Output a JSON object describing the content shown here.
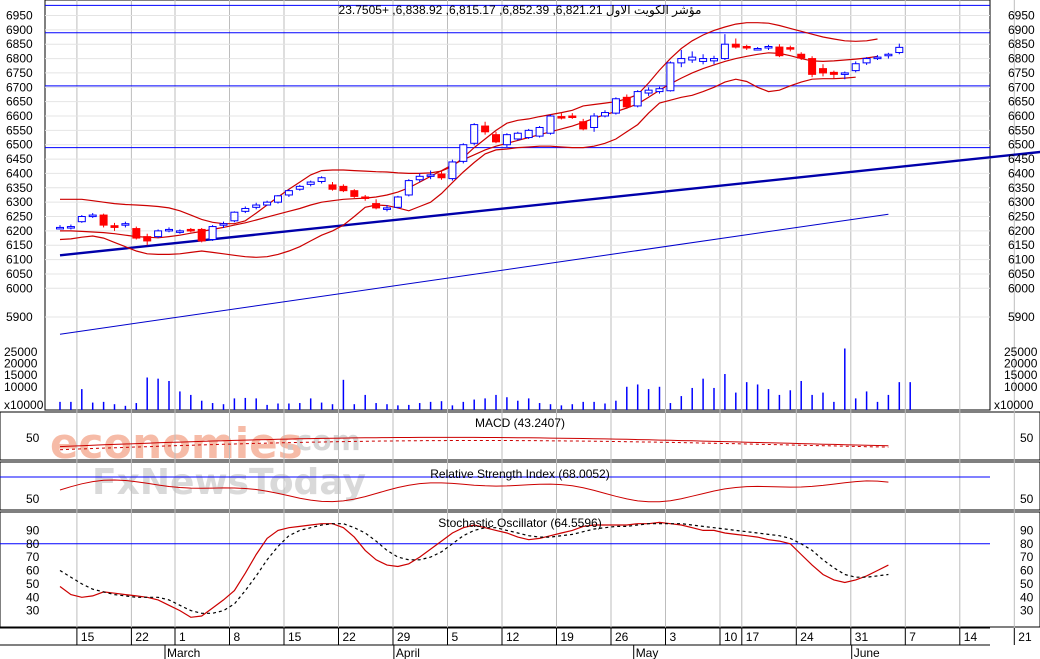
{
  "colors": {
    "up_candle": "#0000ff",
    "down_candle": "#ff0000",
    "bands": "#cc0000",
    "trendline": "#0000aa",
    "hline": "#0000ff",
    "grid": "#bdbdbd",
    "ma": "#0000cc",
    "volume": "#0000ff",
    "watermark": "#f4a58a",
    "watermark2": "#c9c9c9"
  },
  "watermark": {
    "line1": "economies",
    "line1_suffix": ".com",
    "line2": "FxNewsToday"
  },
  "chart_data": [
    {
      "type": "candlestick",
      "title": "مؤشر الكويت الاول 6,821.21, 6,852.39, 6,815.17, 6,838.92, +23.7505",
      "ylim": [
        5820,
        6990
      ],
      "yticks": [
        5900,
        6000,
        6050,
        6100,
        6150,
        6200,
        6250,
        6300,
        6350,
        6400,
        6450,
        6500,
        6550,
        6600,
        6650,
        6700,
        6750,
        6800,
        6850,
        6900,
        6950
      ],
      "hlines": [
        6985,
        6890,
        6705,
        6490
      ],
      "x_day_labels": [
        {
          "i": 1,
          "label": "15"
        },
        {
          "i": 6,
          "label": "22"
        },
        {
          "i": 10,
          "label": "1"
        },
        {
          "i": 15,
          "label": "8"
        },
        {
          "i": 20,
          "label": "15"
        },
        {
          "i": 25,
          "label": "22"
        },
        {
          "i": 30,
          "label": "29"
        },
        {
          "i": 35,
          "label": "5"
        },
        {
          "i": 40,
          "label": "12"
        },
        {
          "i": 45,
          "label": "19"
        },
        {
          "i": 50,
          "label": "26"
        },
        {
          "i": 55,
          "label": "3"
        },
        {
          "i": 60,
          "label": "10"
        },
        {
          "i": 62,
          "label": "17"
        },
        {
          "i": 67,
          "label": "24"
        },
        {
          "i": 72,
          "label": "31"
        },
        {
          "i": 77,
          "label": "7"
        },
        {
          "i": 82,
          "label": "14"
        },
        {
          "i": 87,
          "label": "21"
        }
      ],
      "x_month_labels": [
        {
          "i": 10,
          "label": "March"
        },
        {
          "i": 31,
          "label": "April"
        },
        {
          "i": 53,
          "label": "May"
        },
        {
          "i": 73,
          "label": "June"
        }
      ],
      "candles": [
        {
          "o": 6212,
          "h": 6220,
          "l": 6205,
          "c": 6212
        },
        {
          "o": 6212,
          "h": 6222,
          "l": 6205,
          "c": 6215
        },
        {
          "o": 6232,
          "h": 6255,
          "l": 6228,
          "c": 6250
        },
        {
          "o": 6255,
          "h": 6262,
          "l": 6245,
          "c": 6255
        },
        {
          "o": 6255,
          "h": 6260,
          "l": 6212,
          "c": 6220
        },
        {
          "o": 6218,
          "h": 6228,
          "l": 6200,
          "c": 6212
        },
        {
          "o": 6222,
          "h": 6232,
          "l": 6212,
          "c": 6225
        },
        {
          "o": 6208,
          "h": 6215,
          "l": 6170,
          "c": 6175
        },
        {
          "o": 6180,
          "h": 6190,
          "l": 6150,
          "c": 6165
        },
        {
          "o": 6180,
          "h": 6205,
          "l": 6175,
          "c": 6200
        },
        {
          "o": 6202,
          "h": 6212,
          "l": 6195,
          "c": 6205
        },
        {
          "o": 6200,
          "h": 6205,
          "l": 6190,
          "c": 6200
        },
        {
          "o": 6205,
          "h": 6210,
          "l": 6195,
          "c": 6200
        },
        {
          "o": 6205,
          "h": 6210,
          "l": 6160,
          "c": 6165
        },
        {
          "o": 6170,
          "h": 6220,
          "l": 6165,
          "c": 6215
        },
        {
          "o": 6220,
          "h": 6232,
          "l": 6210,
          "c": 6225
        },
        {
          "o": 6235,
          "h": 6268,
          "l": 6230,
          "c": 6265
        },
        {
          "o": 6268,
          "h": 6285,
          "l": 6262,
          "c": 6278
        },
        {
          "o": 6282,
          "h": 6298,
          "l": 6275,
          "c": 6290
        },
        {
          "o": 6290,
          "h": 6305,
          "l": 6288,
          "c": 6300
        },
        {
          "o": 6300,
          "h": 6325,
          "l": 6295,
          "c": 6322
        },
        {
          "o": 6325,
          "h": 6345,
          "l": 6318,
          "c": 6340
        },
        {
          "o": 6345,
          "h": 6360,
          "l": 6340,
          "c": 6355
        },
        {
          "o": 6362,
          "h": 6375,
          "l": 6355,
          "c": 6370
        },
        {
          "o": 6372,
          "h": 6390,
          "l": 6365,
          "c": 6385
        },
        {
          "o": 6360,
          "h": 6370,
          "l": 6340,
          "c": 6345
        },
        {
          "o": 6355,
          "h": 6362,
          "l": 6335,
          "c": 6340
        },
        {
          "o": 6340,
          "h": 6345,
          "l": 6315,
          "c": 6320
        },
        {
          "o": 6318,
          "h": 6325,
          "l": 6305,
          "c": 6315
        },
        {
          "o": 6295,
          "h": 6310,
          "l": 6275,
          "c": 6280
        },
        {
          "o": 6275,
          "h": 6290,
          "l": 6268,
          "c": 6280
        },
        {
          "o": 6282,
          "h": 6322,
          "l": 6278,
          "c": 6318
        },
        {
          "o": 6325,
          "h": 6380,
          "l": 6320,
          "c": 6375
        },
        {
          "o": 6378,
          "h": 6400,
          "l": 6370,
          "c": 6390
        },
        {
          "o": 6392,
          "h": 6410,
          "l": 6380,
          "c": 6395
        },
        {
          "o": 6398,
          "h": 6410,
          "l": 6378,
          "c": 6385
        },
        {
          "o": 6382,
          "h": 6448,
          "l": 6375,
          "c": 6440
        },
        {
          "o": 6442,
          "h": 6505,
          "l": 6435,
          "c": 6500
        },
        {
          "o": 6505,
          "h": 6575,
          "l": 6498,
          "c": 6570
        },
        {
          "o": 6565,
          "h": 6580,
          "l": 6535,
          "c": 6545
        },
        {
          "o": 6535,
          "h": 6545,
          "l": 6505,
          "c": 6510
        },
        {
          "o": 6500,
          "h": 6540,
          "l": 6492,
          "c": 6535
        },
        {
          "o": 6520,
          "h": 6545,
          "l": 6515,
          "c": 6540
        },
        {
          "o": 6525,
          "h": 6555,
          "l": 6520,
          "c": 6550
        },
        {
          "o": 6530,
          "h": 6565,
          "l": 6525,
          "c": 6560
        },
        {
          "o": 6540,
          "h": 6605,
          "l": 6535,
          "c": 6600
        },
        {
          "o": 6598,
          "h": 6610,
          "l": 6588,
          "c": 6595
        },
        {
          "o": 6600,
          "h": 6610,
          "l": 6590,
          "c": 6598
        },
        {
          "o": 6580,
          "h": 6590,
          "l": 6550,
          "c": 6555
        },
        {
          "o": 6560,
          "h": 6610,
          "l": 6545,
          "c": 6600
        },
        {
          "o": 6600,
          "h": 6620,
          "l": 6595,
          "c": 6612
        },
        {
          "o": 6610,
          "h": 6665,
          "l": 6605,
          "c": 6660
        },
        {
          "o": 6665,
          "h": 6675,
          "l": 6625,
          "c": 6632
        },
        {
          "o": 6635,
          "h": 6690,
          "l": 6630,
          "c": 6685
        },
        {
          "o": 6680,
          "h": 6700,
          "l": 6670,
          "c": 6690
        },
        {
          "o": 6685,
          "h": 6702,
          "l": 6678,
          "c": 6695
        },
        {
          "o": 6688,
          "h": 6790,
          "l": 6685,
          "c": 6785
        },
        {
          "o": 6785,
          "h": 6830,
          "l": 6770,
          "c": 6800
        },
        {
          "o": 6795,
          "h": 6825,
          "l": 6785,
          "c": 6805
        },
        {
          "o": 6790,
          "h": 6815,
          "l": 6780,
          "c": 6800
        },
        {
          "o": 6792,
          "h": 6810,
          "l": 6780,
          "c": 6800
        },
        {
          "o": 6800,
          "h": 6885,
          "l": 6795,
          "c": 6850
        },
        {
          "o": 6850,
          "h": 6870,
          "l": 6835,
          "c": 6840
        },
        {
          "o": 6842,
          "h": 6848,
          "l": 6830,
          "c": 6838
        },
        {
          "o": 6835,
          "h": 6840,
          "l": 6828,
          "c": 6835
        },
        {
          "o": 6838,
          "h": 6848,
          "l": 6830,
          "c": 6842
        },
        {
          "o": 6840,
          "h": 6850,
          "l": 6805,
          "c": 6810
        },
        {
          "o": 6838,
          "h": 6845,
          "l": 6825,
          "c": 6835
        },
        {
          "o": 6815,
          "h": 6822,
          "l": 6795,
          "c": 6802
        },
        {
          "o": 6800,
          "h": 6808,
          "l": 6735,
          "c": 6745
        },
        {
          "o": 6765,
          "h": 6780,
          "l": 6738,
          "c": 6750
        },
        {
          "o": 6752,
          "h": 6758,
          "l": 6730,
          "c": 6745
        },
        {
          "o": 6745,
          "h": 6755,
          "l": 6728,
          "c": 6750
        },
        {
          "o": 6758,
          "h": 6790,
          "l": 6752,
          "c": 6782
        },
        {
          "o": 6785,
          "h": 6805,
          "l": 6778,
          "c": 6800
        },
        {
          "o": 6802,
          "h": 6812,
          "l": 6795,
          "c": 6805
        },
        {
          "o": 6810,
          "h": 6820,
          "l": 6800,
          "c": 6815
        },
        {
          "o": 6821,
          "h": 6852,
          "l": 6815,
          "c": 6839
        }
      ],
      "bollinger_upper": [
        6310,
        6310,
        6310,
        6305,
        6300,
        6295,
        6292,
        6290,
        6288,
        6285,
        6280,
        6270,
        6255,
        6240,
        6230,
        6225,
        6225,
        6235,
        6262,
        6290,
        6318,
        6345,
        6370,
        6395,
        6410,
        6412,
        6412,
        6410,
        6408,
        6406,
        6405,
        6402,
        6400,
        6400,
        6402,
        6408,
        6425,
        6455,
        6490,
        6520,
        6550,
        6575,
        6585,
        6590,
        6598,
        6605,
        6612,
        6620,
        6635,
        6640,
        6645,
        6650,
        6660,
        6675,
        6715,
        6760,
        6800,
        6835,
        6862,
        6882,
        6898,
        6910,
        6920,
        6925,
        6925,
        6923,
        6915,
        6905,
        6895,
        6885,
        6875,
        6868,
        6862,
        6860,
        6862,
        6868
      ],
      "bollinger_middle": [
        6200,
        6200,
        6198,
        6196,
        6194,
        6190,
        6185,
        6180,
        6178,
        6176,
        6180,
        6185,
        6192,
        6198,
        6205,
        6212,
        6220,
        6228,
        6238,
        6248,
        6258,
        6268,
        6278,
        6290,
        6300,
        6305,
        6310,
        6312,
        6314,
        6318,
        6325,
        6335,
        6350,
        6370,
        6390,
        6410,
        6430,
        6448,
        6465,
        6482,
        6495,
        6505,
        6515,
        6525,
        6535,
        6545,
        6555,
        6565,
        6578,
        6592,
        6605,
        6615,
        6628,
        6642,
        6665,
        6690,
        6712,
        6732,
        6750,
        6765,
        6778,
        6790,
        6800,
        6808,
        6815,
        6820,
        6818,
        6810,
        6800,
        6792,
        6790,
        6792,
        6795,
        6798,
        6802,
        6808
      ],
      "bollinger_lower": [
        6170,
        6172,
        6178,
        6182,
        6175,
        6160,
        6145,
        6130,
        6120,
        6118,
        6118,
        6120,
        6125,
        6130,
        6125,
        6120,
        6115,
        6110,
        6108,
        6110,
        6118,
        6130,
        6145,
        6165,
        6185,
        6200,
        6220,
        6250,
        6282,
        6290,
        6288,
        6280,
        6270,
        6285,
        6300,
        6330,
        6368,
        6405,
        6438,
        6468,
        6482,
        6485,
        6490,
        6492,
        6495,
        6495,
        6492,
        6490,
        6490,
        6495,
        6505,
        6520,
        6545,
        6570,
        6610,
        6645,
        6655,
        6665,
        6672,
        6685,
        6700,
        6718,
        6728,
        6720,
        6700,
        6685,
        6690,
        6705,
        6718,
        6728,
        6730,
        6730,
        6732,
        6735
      ],
      "trendline": {
        "from": [
          0,
          6115
        ],
        "to": [
          90,
          6475
        ]
      },
      "moving_average": {
        "from": [
          0,
          5840
        ],
        "to": [
          76,
          6258
        ]
      },
      "volume": {
        "ytick_labels": [
          "25000",
          "20000",
          "15000",
          "10000"
        ],
        "ytick_values": [
          25000,
          20000,
          15000,
          10000
        ],
        "unit_label": "x10000",
        "ylim": [
          0,
          28000
        ],
        "values": [
          3500,
          3500,
          9000,
          3200,
          3500,
          2500,
          1800,
          3000,
          14000,
          13500,
          12500,
          8000,
          6500,
          4000,
          3000,
          2500,
          5000,
          5200,
          5000,
          2200,
          2800,
          2800,
          3000,
          5000,
          3200,
          2500,
          13000,
          2500,
          6500,
          3000,
          2500,
          2000,
          2200,
          3000,
          3500,
          3800,
          2000,
          3500,
          4500,
          5000,
          6500,
          5500,
          4000,
          5000,
          3000,
          2500,
          2000,
          2500,
          3500,
          3500,
          2800,
          4000,
          10000,
          11000,
          9000,
          10000,
          3000,
          6000,
          9500,
          13500,
          9500,
          15500,
          7500,
          12000,
          11000,
          9000,
          6500,
          8500,
          12500,
          6500,
          7500,
          3500,
          26500,
          5000,
          8000,
          3500,
          6500,
          12000,
          12000
        ]
      }
    },
    {
      "type": "line",
      "title": "MACD (43.2407)",
      "ytick_labels": [
        "50"
      ],
      "signal_series_style": "dashed"
    },
    {
      "type": "line",
      "title": "Relative Strength Index (68.0052)",
      "ytick_labels": [
        "50"
      ],
      "hline": 70
    },
    {
      "type": "line",
      "title": "Stochastic Oscillator (64.5596)",
      "ylim": [
        20,
        100
      ],
      "yticks": [
        30,
        40,
        50,
        60,
        70,
        80,
        90
      ],
      "hline": 80,
      "percentK": [
        48,
        42,
        40,
        41,
        44,
        43,
        42,
        41,
        40,
        38,
        34,
        30,
        25,
        26,
        32,
        38,
        45,
        58,
        72,
        84,
        90,
        92,
        93,
        94,
        95,
        95,
        92,
        85,
        75,
        68,
        64,
        63,
        65,
        70,
        76,
        82,
        88,
        92,
        94,
        92,
        90,
        88,
        85,
        83,
        84,
        86,
        88,
        90,
        93,
        94,
        94,
        94,
        94,
        95,
        95,
        96,
        95,
        94,
        92,
        90,
        90,
        88,
        87,
        86,
        85,
        83,
        82,
        80,
        72,
        64,
        57,
        53,
        51,
        53,
        56,
        60,
        64
      ],
      "percentD": [
        60,
        55,
        50,
        46,
        44,
        42,
        41,
        40,
        40,
        40,
        38,
        34,
        30,
        28,
        28,
        30,
        35,
        45,
        56,
        68,
        78,
        86,
        90,
        92,
        94,
        95,
        95,
        92,
        88,
        82,
        75,
        70,
        68,
        68,
        70,
        74,
        80,
        86,
        90,
        92,
        92,
        90,
        88,
        86,
        85,
        85,
        86,
        87,
        89,
        91,
        92,
        93,
        93,
        94,
        95,
        95,
        95,
        95,
        94,
        93,
        92,
        91,
        90,
        89,
        88,
        87,
        86,
        84,
        80,
        75,
        68,
        62,
        57,
        55,
        55,
        56,
        57
      ]
    }
  ]
}
